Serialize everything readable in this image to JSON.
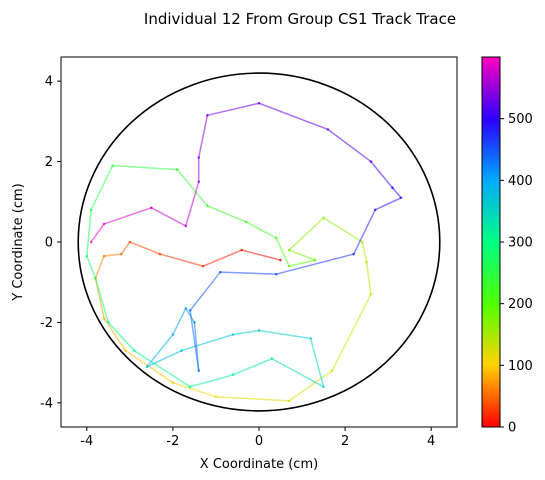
{
  "chart_data": {
    "type": "line",
    "title": "Individual 12 From Group CS1 Track Trace",
    "xlabel": "X Coordinate (cm)",
    "ylabel": "Y Coordinate (cm)",
    "xlim": [
      -4.6,
      4.6
    ],
    "ylim": [
      -4.6,
      4.6
    ],
    "x_ticks": [
      -4,
      -2,
      0,
      2,
      4
    ],
    "y_ticks": [
      -4,
      -2,
      0,
      2,
      4
    ],
    "arena_circle": {
      "center": [
        0,
        0
      ],
      "radius": 4.2
    },
    "colorbar": {
      "min": 0,
      "max": 600,
      "ticks": [
        0,
        100,
        200,
        300,
        400,
        500
      ],
      "colormap": "gist_rainbow"
    },
    "track": [
      {
        "t": 0,
        "x": 0.5,
        "y": -0.45
      },
      {
        "t": 10,
        "x": -0.4,
        "y": -0.2
      },
      {
        "t": 20,
        "x": -1.3,
        "y": -0.6
      },
      {
        "t": 30,
        "x": -2.3,
        "y": -0.3
      },
      {
        "t": 40,
        "x": -3.0,
        "y": 0.0
      },
      {
        "t": 50,
        "x": -3.2,
        "y": -0.3
      },
      {
        "t": 60,
        "x": -3.6,
        "y": -0.35
      },
      {
        "t": 70,
        "x": -3.8,
        "y": -0.9
      },
      {
        "t": 80,
        "x": -3.6,
        "y": -1.9
      },
      {
        "t": 90,
        "x": -3.1,
        "y": -2.7
      },
      {
        "t": 100,
        "x": -2.0,
        "y": -3.5
      },
      {
        "t": 110,
        "x": -1.0,
        "y": -3.85
      },
      {
        "t": 120,
        "x": 0.7,
        "y": -3.95
      },
      {
        "t": 130,
        "x": 1.7,
        "y": -3.2
      },
      {
        "t": 140,
        "x": 2.6,
        "y": -1.3
      },
      {
        "t": 150,
        "x": 2.5,
        "y": -0.5
      },
      {
        "t": 160,
        "x": 2.4,
        "y": 0.0
      },
      {
        "t": 170,
        "x": 1.5,
        "y": 0.6
      },
      {
        "t": 180,
        "x": 0.7,
        "y": -0.2
      },
      {
        "t": 190,
        "x": 1.3,
        "y": -0.45
      },
      {
        "t": 200,
        "x": 0.7,
        "y": -0.6
      },
      {
        "t": 210,
        "x": 0.4,
        "y": 0.1
      },
      {
        "t": 220,
        "x": -0.3,
        "y": 0.5
      },
      {
        "t": 230,
        "x": -1.2,
        "y": 0.9
      },
      {
        "t": 240,
        "x": -1.9,
        "y": 1.8
      },
      {
        "t": 250,
        "x": -3.4,
        "y": 1.9
      },
      {
        "t": 260,
        "x": -3.9,
        "y": 0.8
      },
      {
        "t": 270,
        "x": -4.0,
        "y": -0.35
      },
      {
        "t": 280,
        "x": -3.8,
        "y": -0.9
      },
      {
        "t": 290,
        "x": -3.5,
        "y": -2.0
      },
      {
        "t": 300,
        "x": -2.9,
        "y": -2.7
      },
      {
        "t": 310,
        "x": -1.6,
        "y": -3.6
      },
      {
        "t": 320,
        "x": -0.6,
        "y": -3.3
      },
      {
        "t": 330,
        "x": 0.3,
        "y": -2.9
      },
      {
        "t": 340,
        "x": 1.5,
        "y": -3.6
      },
      {
        "t": 350,
        "x": 1.2,
        "y": -2.4
      },
      {
        "t": 360,
        "x": 0.0,
        "y": -2.2
      },
      {
        "t": 370,
        "x": -0.6,
        "y": -2.3
      },
      {
        "t": 380,
        "x": -1.8,
        "y": -2.7
      },
      {
        "t": 390,
        "x": -2.6,
        "y": -3.1
      },
      {
        "t": 400,
        "x": -2.0,
        "y": -2.3
      },
      {
        "t": 410,
        "x": -1.7,
        "y": -1.65
      },
      {
        "t": 420,
        "x": -1.5,
        "y": -2.0
      },
      {
        "t": 430,
        "x": -1.4,
        "y": -3.2
      },
      {
        "t": 440,
        "x": -1.6,
        "y": -1.7
      },
      {
        "t": 450,
        "x": -0.9,
        "y": -0.75
      },
      {
        "t": 460,
        "x": 0.4,
        "y": -0.8
      },
      {
        "t": 470,
        "x": 2.2,
        "y": -0.3
      },
      {
        "t": 480,
        "x": 2.7,
        "y": 0.8
      },
      {
        "t": 490,
        "x": 3.3,
        "y": 1.1
      },
      {
        "t": 500,
        "x": 3.1,
        "y": 1.35
      },
      {
        "t": 510,
        "x": 2.6,
        "y": 2.0
      },
      {
        "t": 520,
        "x": 1.6,
        "y": 2.8
      },
      {
        "t": 530,
        "x": 0.0,
        "y": 3.45
      },
      {
        "t": 540,
        "x": -1.2,
        "y": 3.15
      },
      {
        "t": 550,
        "x": -1.4,
        "y": 2.1
      },
      {
        "t": 560,
        "x": -1.4,
        "y": 1.5
      },
      {
        "t": 570,
        "x": -1.7,
        "y": 0.4
      },
      {
        "t": 580,
        "x": -2.5,
        "y": 0.85
      },
      {
        "t": 590,
        "x": -3.6,
        "y": 0.45
      },
      {
        "t": 600,
        "x": -3.9,
        "y": 0.0
      }
    ]
  }
}
